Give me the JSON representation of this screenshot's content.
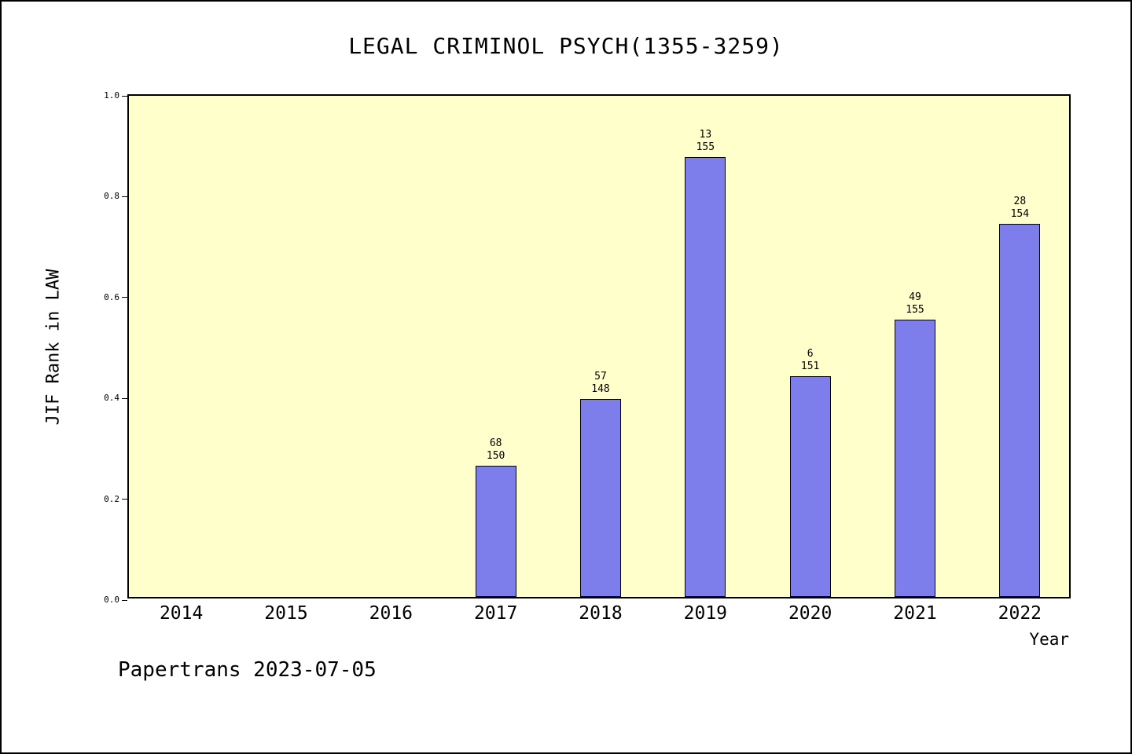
{
  "footer": "Papertrans 2023-07-05",
  "chart_data": {
    "type": "bar",
    "title": "LEGAL CRIMINOL PSYCH(1355-3259)",
    "xlabel": "Year",
    "ylabel": "JIF Rank in LAW",
    "ylim": [
      0.0,
      1.0
    ],
    "yticks": [
      "0.0",
      "0.2",
      "0.4",
      "0.6",
      "0.8",
      "1.0"
    ],
    "grid": "off",
    "legend": "none",
    "plot_background": "#ffffcc",
    "bar_color": "#7d7dec",
    "categories": [
      "2014",
      "2015",
      "2016",
      "2017",
      "2018",
      "2019",
      "2020",
      "2021",
      "2022"
    ],
    "bars": [
      {
        "category": "2017",
        "value": 0.26,
        "rank": "68",
        "total": "150"
      },
      {
        "category": "2018",
        "value": 0.392,
        "rank": "57",
        "total": "148"
      },
      {
        "category": "2019",
        "value": 0.872,
        "rank": "13",
        "total": "155"
      },
      {
        "category": "2020",
        "value": 0.438,
        "rank": "6",
        "total": "151"
      },
      {
        "category": "2021",
        "value": 0.55,
        "rank": "49",
        "total": "155"
      },
      {
        "category": "2022",
        "value": 0.74,
        "rank": "28",
        "total": "154"
      }
    ]
  }
}
